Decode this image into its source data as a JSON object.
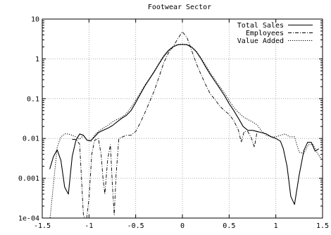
{
  "chart_data": {
    "type": "line",
    "title": "Footwear Sector",
    "xlabel": "",
    "ylabel": "",
    "xlim": [
      -1.5,
      1.5
    ],
    "ylim": [
      0.0001,
      10
    ],
    "yscale": "log",
    "grid": true,
    "legend_position": "top-right",
    "x_tick_labels": [
      "-1.5",
      "-1",
      "-0.5",
      "0",
      "0.5",
      "1",
      "1.5"
    ],
    "x_tick_values": [
      -1.5,
      -1,
      -0.5,
      0,
      0.5,
      1,
      1.5
    ],
    "y_tick_labels": [
      "1e-04",
      "0.001",
      "0.01",
      "0.1",
      "1",
      "10"
    ],
    "y_tick_values": [
      0.0001,
      0.001,
      0.01,
      0.1,
      1,
      10
    ],
    "series": [
      {
        "name": "Total Sales",
        "dash": "solid",
        "points": [
          [
            -1.42,
            0.0017
          ],
          [
            -1.38,
            0.0035
          ],
          [
            -1.34,
            0.0052
          ],
          [
            -1.3,
            0.0028
          ],
          [
            -1.26,
            0.0006
          ],
          [
            -1.22,
            0.0004
          ],
          [
            -1.18,
            0.0035
          ],
          [
            -1.14,
            0.009
          ],
          [
            -1.1,
            0.013
          ],
          [
            -1.06,
            0.012
          ],
          [
            -1.02,
            0.009
          ],
          [
            -0.98,
            0.0088
          ],
          [
            -0.94,
            0.011
          ],
          [
            -0.9,
            0.014
          ],
          [
            -0.85,
            0.016
          ],
          [
            -0.8,
            0.018
          ],
          [
            -0.75,
            0.021
          ],
          [
            -0.7,
            0.026
          ],
          [
            -0.65,
            0.032
          ],
          [
            -0.6,
            0.038
          ],
          [
            -0.55,
            0.05
          ],
          [
            -0.5,
            0.08
          ],
          [
            -0.45,
            0.13
          ],
          [
            -0.4,
            0.21
          ],
          [
            -0.35,
            0.32
          ],
          [
            -0.3,
            0.48
          ],
          [
            -0.25,
            0.75
          ],
          [
            -0.2,
            1.15
          ],
          [
            -0.15,
            1.6
          ],
          [
            -0.1,
            2.0
          ],
          [
            -0.05,
            2.25
          ],
          [
            0.0,
            2.3
          ],
          [
            0.05,
            2.25
          ],
          [
            0.1,
            1.95
          ],
          [
            0.15,
            1.5
          ],
          [
            0.2,
            1.0
          ],
          [
            0.25,
            0.62
          ],
          [
            0.3,
            0.4
          ],
          [
            0.35,
            0.27
          ],
          [
            0.4,
            0.18
          ],
          [
            0.45,
            0.12
          ],
          [
            0.5,
            0.075
          ],
          [
            0.55,
            0.05
          ],
          [
            0.6,
            0.032
          ],
          [
            0.65,
            0.02
          ],
          [
            0.7,
            0.016
          ],
          [
            0.75,
            0.016
          ],
          [
            0.8,
            0.015
          ],
          [
            0.85,
            0.014
          ],
          [
            0.9,
            0.013
          ],
          [
            0.95,
            0.011
          ],
          [
            1.0,
            0.01
          ],
          [
            1.05,
            0.0085
          ],
          [
            1.08,
            0.0055
          ],
          [
            1.12,
            0.002
          ],
          [
            1.16,
            0.00035
          ],
          [
            1.2,
            0.00022
          ],
          [
            1.25,
            0.0012
          ],
          [
            1.3,
            0.005
          ],
          [
            1.34,
            0.008
          ],
          [
            1.38,
            0.008
          ],
          [
            1.42,
            0.0048
          ],
          [
            1.46,
            0.0055
          ]
        ]
      },
      {
        "name": "Employees",
        "dash": "dashdot",
        "points": [
          [
            -1.18,
            0.0095
          ],
          [
            -1.14,
            0.0095
          ],
          [
            -1.1,
            0.0072
          ],
          [
            -1.08,
            0.001
          ],
          [
            -1.06,
            0.00012
          ],
          [
            -1.03,
            8e-05
          ],
          [
            -1.0,
            0.0003
          ],
          [
            -0.97,
            0.004
          ],
          [
            -0.94,
            0.009
          ],
          [
            -0.9,
            0.01
          ],
          [
            -0.87,
            0.004
          ],
          [
            -0.85,
            0.001
          ],
          [
            -0.83,
            0.0004
          ],
          [
            -0.8,
            0.003
          ],
          [
            -0.77,
            0.007
          ],
          [
            -0.75,
            0.0007
          ],
          [
            -0.73,
            0.00012
          ],
          [
            -0.71,
            0.0012
          ],
          [
            -0.68,
            0.01
          ],
          [
            -0.64,
            0.011
          ],
          [
            -0.6,
            0.012
          ],
          [
            -0.55,
            0.012
          ],
          [
            -0.5,
            0.015
          ],
          [
            -0.45,
            0.025
          ],
          [
            -0.4,
            0.045
          ],
          [
            -0.35,
            0.085
          ],
          [
            -0.3,
            0.16
          ],
          [
            -0.25,
            0.35
          ],
          [
            -0.2,
            0.8
          ],
          [
            -0.15,
            1.4
          ],
          [
            -0.1,
            2.0
          ],
          [
            -0.05,
            3.2
          ],
          [
            0.0,
            4.8
          ],
          [
            0.05,
            3.4
          ],
          [
            0.1,
            1.6
          ],
          [
            0.15,
            0.75
          ],
          [
            0.2,
            0.4
          ],
          [
            0.25,
            0.22
          ],
          [
            0.3,
            0.13
          ],
          [
            0.35,
            0.095
          ],
          [
            0.4,
            0.065
          ],
          [
            0.45,
            0.05
          ],
          [
            0.5,
            0.04
          ],
          [
            0.55,
            0.028
          ],
          [
            0.6,
            0.016
          ],
          [
            0.63,
            0.008
          ],
          [
            0.66,
            0.015
          ],
          [
            0.7,
            0.015
          ],
          [
            0.74,
            0.01
          ],
          [
            0.77,
            0.006
          ],
          [
            0.8,
            0.015
          ]
        ]
      },
      {
        "name": "Value Added",
        "dash": "dotted",
        "points": [
          [
            -1.42,
            8e-05
          ],
          [
            -1.38,
            0.0007
          ],
          [
            -1.34,
            0.006
          ],
          [
            -1.3,
            0.011
          ],
          [
            -1.26,
            0.013
          ],
          [
            -1.22,
            0.013
          ],
          [
            -1.18,
            0.012
          ],
          [
            -1.14,
            0.011
          ],
          [
            -1.1,
            0.0095
          ],
          [
            -1.06,
            0.012
          ],
          [
            -1.02,
            0.009
          ],
          [
            -0.98,
            0.0085
          ],
          [
            -0.94,
            0.012
          ],
          [
            -0.9,
            0.015
          ],
          [
            -0.85,
            0.018
          ],
          [
            -0.8,
            0.021
          ],
          [
            -0.75,
            0.026
          ],
          [
            -0.7,
            0.03
          ],
          [
            -0.65,
            0.034
          ],
          [
            -0.6,
            0.042
          ],
          [
            -0.55,
            0.06
          ],
          [
            -0.5,
            0.09
          ],
          [
            -0.45,
            0.14
          ],
          [
            -0.4,
            0.22
          ],
          [
            -0.35,
            0.33
          ],
          [
            -0.3,
            0.5
          ],
          [
            -0.25,
            0.78
          ],
          [
            -0.2,
            1.2
          ],
          [
            -0.15,
            1.65
          ],
          [
            -0.1,
            2.05
          ],
          [
            -0.05,
            2.3
          ],
          [
            0.0,
            2.35
          ],
          [
            0.05,
            2.3
          ],
          [
            0.1,
            2.0
          ],
          [
            0.15,
            1.55
          ],
          [
            0.2,
            1.05
          ],
          [
            0.25,
            0.68
          ],
          [
            0.3,
            0.44
          ],
          [
            0.35,
            0.3
          ],
          [
            0.4,
            0.2
          ],
          [
            0.45,
            0.14
          ],
          [
            0.5,
            0.09
          ],
          [
            0.55,
            0.06
          ],
          [
            0.6,
            0.045
          ],
          [
            0.65,
            0.035
          ],
          [
            0.7,
            0.03
          ],
          [
            0.75,
            0.026
          ],
          [
            0.8,
            0.022
          ],
          [
            0.85,
            0.015
          ],
          [
            0.9,
            0.012
          ],
          [
            0.95,
            0.011
          ],
          [
            1.0,
            0.011
          ],
          [
            1.05,
            0.012
          ],
          [
            1.1,
            0.013
          ],
          [
            1.15,
            0.011
          ],
          [
            1.2,
            0.011
          ],
          [
            1.25,
            0.0045
          ],
          [
            1.3,
            0.0042
          ],
          [
            1.35,
            0.007
          ],
          [
            1.4,
            0.007
          ],
          [
            1.44,
            0.0045
          ],
          [
            1.48,
            0.0032
          ]
        ]
      }
    ]
  }
}
